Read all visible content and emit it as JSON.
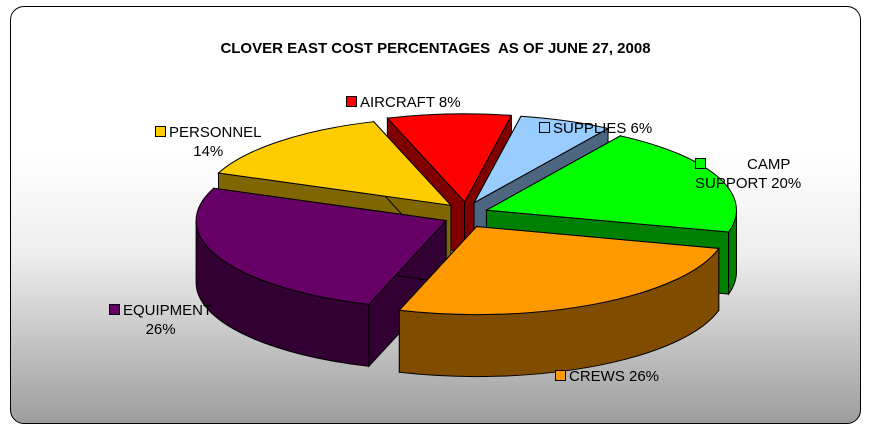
{
  "chart_data": {
    "type": "pie",
    "title": "CLOVER EAST COST PERCENTAGES  AS OF JUNE 27, 2008",
    "slices": [
      {
        "label": "AIRCRAFT",
        "value": 8,
        "color": "#ff0000",
        "label_text": "AIRCRAFT 8%"
      },
      {
        "label": "SUPPLIES",
        "value": 6,
        "color": "#99ccff",
        "label_text": "SUPPLIES 6%"
      },
      {
        "label": "CAMP SUPPORT",
        "value": 20,
        "color": "#00ff00",
        "label_line1": "CAMP",
        "label_line2": "SUPPORT 20%"
      },
      {
        "label": "CREWS",
        "value": 26,
        "color": "#ff9900",
        "label_text": "CREWS 26%"
      },
      {
        "label": "EQUIPMENT",
        "value": 26,
        "color": "#660066",
        "label_line1": "EQUIPMENT",
        "label_line2": "26%"
      },
      {
        "label": "PERSONNEL",
        "value": 14,
        "color": "#ffcc00",
        "label_line1": "PERSONNEL",
        "label_line2": "14%"
      }
    ],
    "style": "3d-exploded"
  }
}
